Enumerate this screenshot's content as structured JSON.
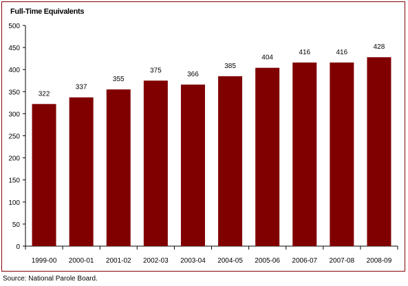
{
  "chart_data": {
    "type": "bar",
    "title": "Full-Time Equivalents",
    "categories": [
      "1999-00",
      "2000-01",
      "2001-02",
      "2002-03",
      "2003-04",
      "2004-05",
      "2005-06",
      "2006-07",
      "2007-08",
      "2008-09"
    ],
    "values": [
      322,
      337,
      355,
      375,
      366,
      385,
      404,
      416,
      416,
      428
    ],
    "ylim": [
      0,
      500
    ],
    "yticks": [
      0,
      50,
      100,
      150,
      200,
      250,
      300,
      350,
      400,
      450,
      500
    ],
    "xlabel": "",
    "ylabel": "",
    "grid": false,
    "bar_color": "#800000",
    "border_color": "#800000"
  },
  "source": "Source: National Parole Board."
}
